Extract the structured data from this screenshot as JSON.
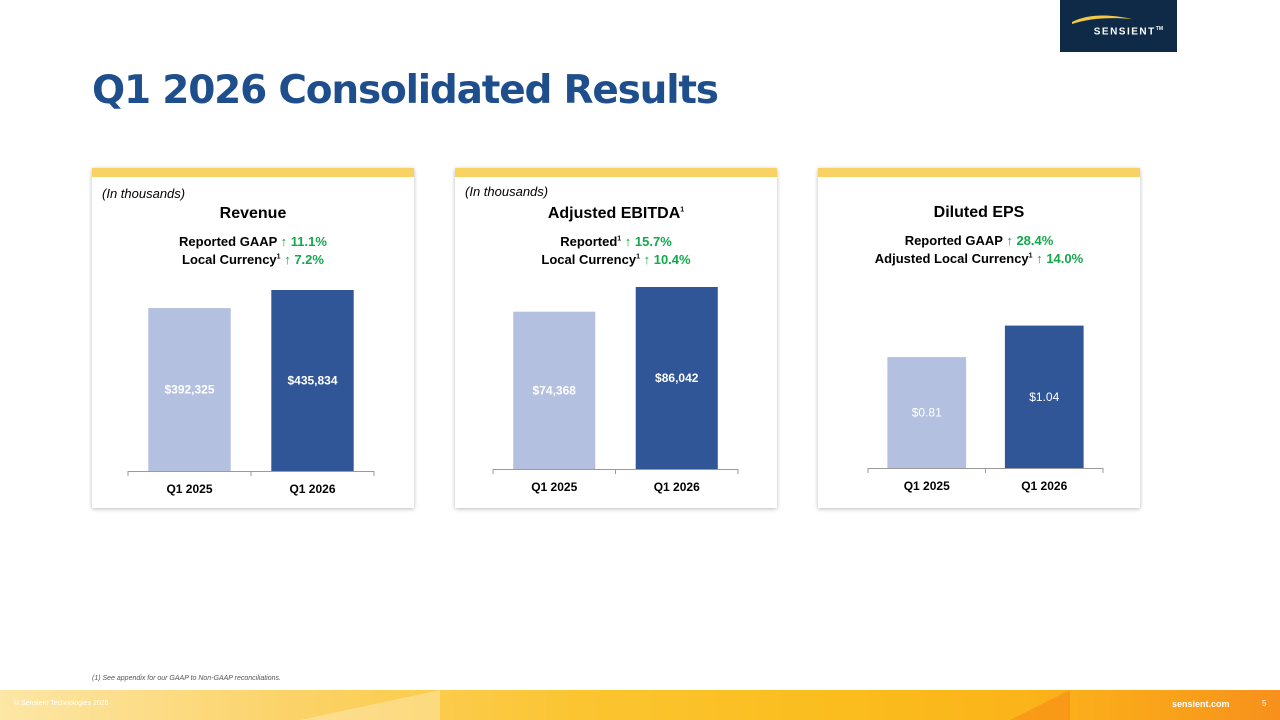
{
  "brand": {
    "logo_text": "SENSIENT",
    "logo_tm": "TM",
    "colors": {
      "navy": "#0e2a47",
      "title_blue": "#1f4e8c",
      "accent_yellow": "#f8d263",
      "bar_light": "#b4c0e0",
      "bar_dark": "#315697",
      "growth_green": "#14a84b"
    }
  },
  "title": "Q1 2026 Consolidated Results",
  "cards": [
    {
      "note": "(In thousands)",
      "heading": "Revenue",
      "line1": {
        "label": "Reported GAAP",
        "arrow": "up-arrow",
        "value": "11.1%"
      },
      "line2": {
        "label": "Local Currency",
        "sup": "1",
        "arrow": "up-arrow",
        "value": "7.2%"
      }
    },
    {
      "note": "(In thousands)",
      "heading": "Adjusted EBITDA",
      "heading_sup": "1",
      "line1": {
        "label": "Reported",
        "sup": "1",
        "arrow": "up-arrow",
        "value": "15.7%"
      },
      "line2": {
        "label": "Local Currency",
        "sup": "1",
        "arrow": "up-arrow",
        "value": "10.4%"
      }
    },
    {
      "note": "",
      "heading": "Diluted EPS",
      "line1": {
        "label": "Reported GAAP",
        "arrow": "up-arrow",
        "value": "28.4%"
      },
      "line2": {
        "label": "Adjusted Local Currency",
        "sup": "1",
        "arrow": "up-arrow",
        "value": "14.0%"
      }
    }
  ],
  "chart_data": [
    {
      "type": "bar",
      "title": "Revenue",
      "categories": [
        "Q1 2025",
        "Q1 2026"
      ],
      "values": [
        392325,
        435834
      ],
      "labels": [
        "$392,325",
        "$435,834"
      ],
      "ylim": [
        0,
        435834
      ]
    },
    {
      "type": "bar",
      "title": "Adjusted EBITDA",
      "categories": [
        "Q1 2025",
        "Q1 2026"
      ],
      "values": [
        74368,
        86042
      ],
      "labels": [
        "$74,368",
        "$86,042"
      ],
      "ylim": [
        0,
        86042
      ]
    },
    {
      "type": "bar",
      "title": "Diluted EPS",
      "categories": [
        "Q1 2025",
        "Q1 2026"
      ],
      "values": [
        0.81,
        1.04
      ],
      "labels": [
        "$0.81",
        "$1.04"
      ],
      "ylim": [
        0,
        1.3
      ]
    }
  ],
  "footnote": "(1) See appendix for our GAAP to Non-GAAP reconciliations.",
  "footer": {
    "copyright": "© Sensient Technologies 2026",
    "url": "sensient.com",
    "page": "5"
  }
}
